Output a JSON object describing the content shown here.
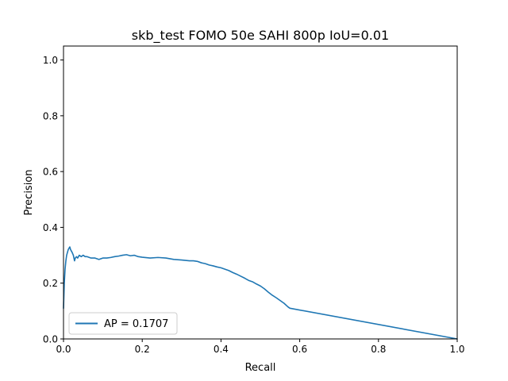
{
  "chart_data": {
    "type": "line",
    "title": "skb_test FOMO 50e SAHI 800p IoU=0.01",
    "xlabel": "Recall",
    "ylabel": "Precision",
    "xlim": [
      0.0,
      1.0
    ],
    "ylim": [
      0.0,
      1.05
    ],
    "xticks": [
      0.0,
      0.2,
      0.4,
      0.6,
      0.8,
      1.0
    ],
    "xtick_labels": [
      "0.0",
      "0.2",
      "0.4",
      "0.6",
      "0.8",
      "1.0"
    ],
    "yticks": [
      0.0,
      0.2,
      0.4,
      0.6,
      0.8,
      1.0
    ],
    "ytick_labels": [
      "0.0",
      "0.2",
      "0.4",
      "0.6",
      "0.8",
      "1.0"
    ],
    "grid": false,
    "legend_position": "lower-left",
    "series": [
      {
        "name": "AP = 0.1707",
        "color": "#1f77b4",
        "x": [
          0.0,
          0.002,
          0.004,
          0.006,
          0.008,
          0.01,
          0.012,
          0.014,
          0.016,
          0.018,
          0.02,
          0.022,
          0.025,
          0.028,
          0.03,
          0.033,
          0.036,
          0.04,
          0.045,
          0.05,
          0.055,
          0.06,
          0.07,
          0.08,
          0.09,
          0.1,
          0.11,
          0.12,
          0.13,
          0.14,
          0.15,
          0.16,
          0.17,
          0.18,
          0.19,
          0.2,
          0.22,
          0.24,
          0.26,
          0.28,
          0.3,
          0.32,
          0.33,
          0.34,
          0.35,
          0.36,
          0.37,
          0.38,
          0.39,
          0.4,
          0.41,
          0.42,
          0.43,
          0.44,
          0.45,
          0.46,
          0.47,
          0.48,
          0.49,
          0.5,
          0.51,
          0.52,
          0.53,
          0.54,
          0.55,
          0.56,
          0.57,
          0.575,
          1.0
        ],
        "y": [
          0.11,
          0.2,
          0.25,
          0.28,
          0.3,
          0.31,
          0.32,
          0.325,
          0.33,
          0.32,
          0.315,
          0.31,
          0.3,
          0.28,
          0.29,
          0.295,
          0.29,
          0.3,
          0.295,
          0.3,
          0.295,
          0.295,
          0.29,
          0.29,
          0.285,
          0.29,
          0.29,
          0.292,
          0.295,
          0.297,
          0.3,
          0.302,
          0.298,
          0.3,
          0.295,
          0.293,
          0.29,
          0.292,
          0.29,
          0.285,
          0.283,
          0.28,
          0.28,
          0.278,
          0.273,
          0.27,
          0.265,
          0.262,
          0.258,
          0.255,
          0.25,
          0.245,
          0.238,
          0.232,
          0.225,
          0.218,
          0.21,
          0.205,
          0.197,
          0.19,
          0.18,
          0.168,
          0.157,
          0.148,
          0.138,
          0.128,
          0.115,
          0.11,
          0.0
        ]
      }
    ]
  }
}
